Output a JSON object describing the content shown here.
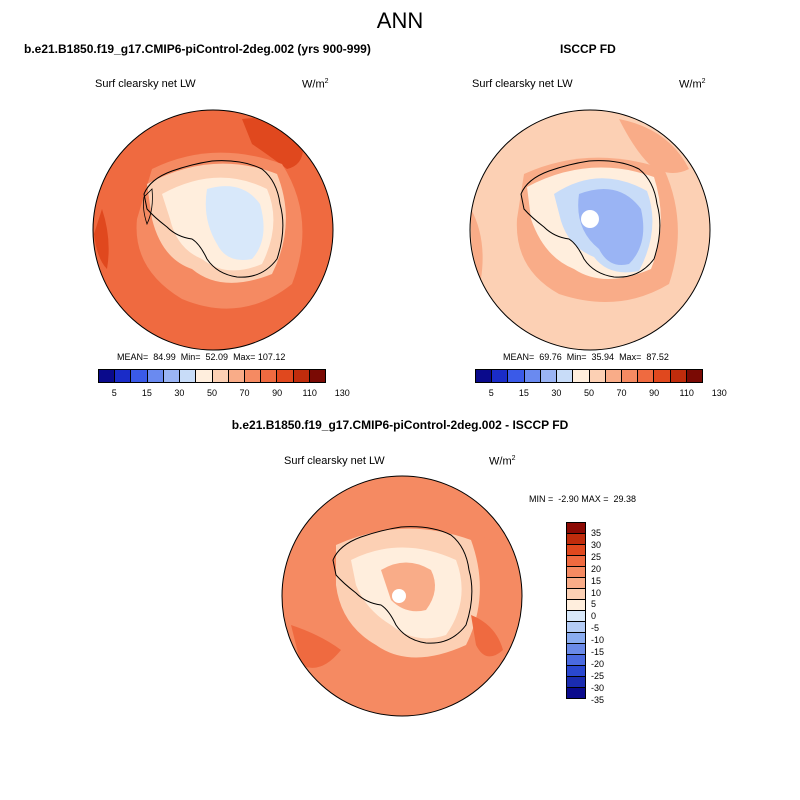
{
  "page_title": "ANN",
  "panels": [
    {
      "title": "b.e21.B1850.f19_g17.CMIP6-piControl-2deg.002 (yrs 900-999)",
      "variable": "Surf clearsky net LW",
      "units_base": "W/m",
      "units_exp": "2",
      "stats": "MEAN=  84.99  Min=  52.09  Max= 107.12"
    },
    {
      "title": "ISCCP FD",
      "variable": "Surf clearsky net LW",
      "units_base": "W/m",
      "units_exp": "2",
      "stats": "MEAN=  69.76  Min=  35.94  Max=  87.52"
    }
  ],
  "diff_panel": {
    "title": "b.e21.B1850.f19_g17.CMIP6-piControl-2deg.002 - ISCCP FD",
    "variable": "Surf clearsky net LW",
    "units_base": "W/m",
    "units_exp": "2",
    "stats": "MIN =  -2.90 MAX =  29.38"
  },
  "colorbar_main": {
    "colors": [
      "#0a0a8c",
      "#1a2cc8",
      "#3a5ae8",
      "#6a8af0",
      "#9ab4f4",
      "#c8dcf8",
      "#ffeedd",
      "#fcd0b4",
      "#f9ac88",
      "#f58a62",
      "#ef6a40",
      "#e0481e",
      "#c02c0c",
      "#7a0a04"
    ],
    "labels": [
      "5",
      "15",
      "30",
      "50",
      "70",
      "90",
      "110",
      "130"
    ]
  },
  "colorbar_diff": {
    "colors": [
      "#8c0a04",
      "#c02c0c",
      "#e0481e",
      "#ef6a40",
      "#f58a62",
      "#f9ac88",
      "#fcd0b4",
      "#ffeedd",
      "#d8e8fa",
      "#b4ccf6",
      "#8aacf0",
      "#6a8ae8",
      "#4a6ae0",
      "#2a48d0",
      "#1a2cb0",
      "#0a0a8c"
    ],
    "labels": [
      "35",
      "30",
      "25",
      "20",
      "15",
      "10",
      "5",
      "0",
      "-5",
      "-10",
      "-15",
      "-20",
      "-25",
      "-30",
      "-35"
    ]
  },
  "map_colors": {
    "ocean_model": "#ef6a40",
    "ring_model": "#f58a62",
    "coast_model": "#fcd0b4",
    "interior_model": "#ffeedd",
    "plateau_model": "#d8e8fa",
    "ocean_obs": "#fcd0b4",
    "ring_obs": "#f9ac88",
    "coast_obs": "#ffeedd",
    "plateau_obs": "#c8dcf8",
    "core_obs": "#9ab4f4",
    "diff_ocean": "#f58a62",
    "diff_ring": "#f9ac88",
    "diff_land": "#fcd0b4",
    "diff_inner": "#ffeedd"
  }
}
